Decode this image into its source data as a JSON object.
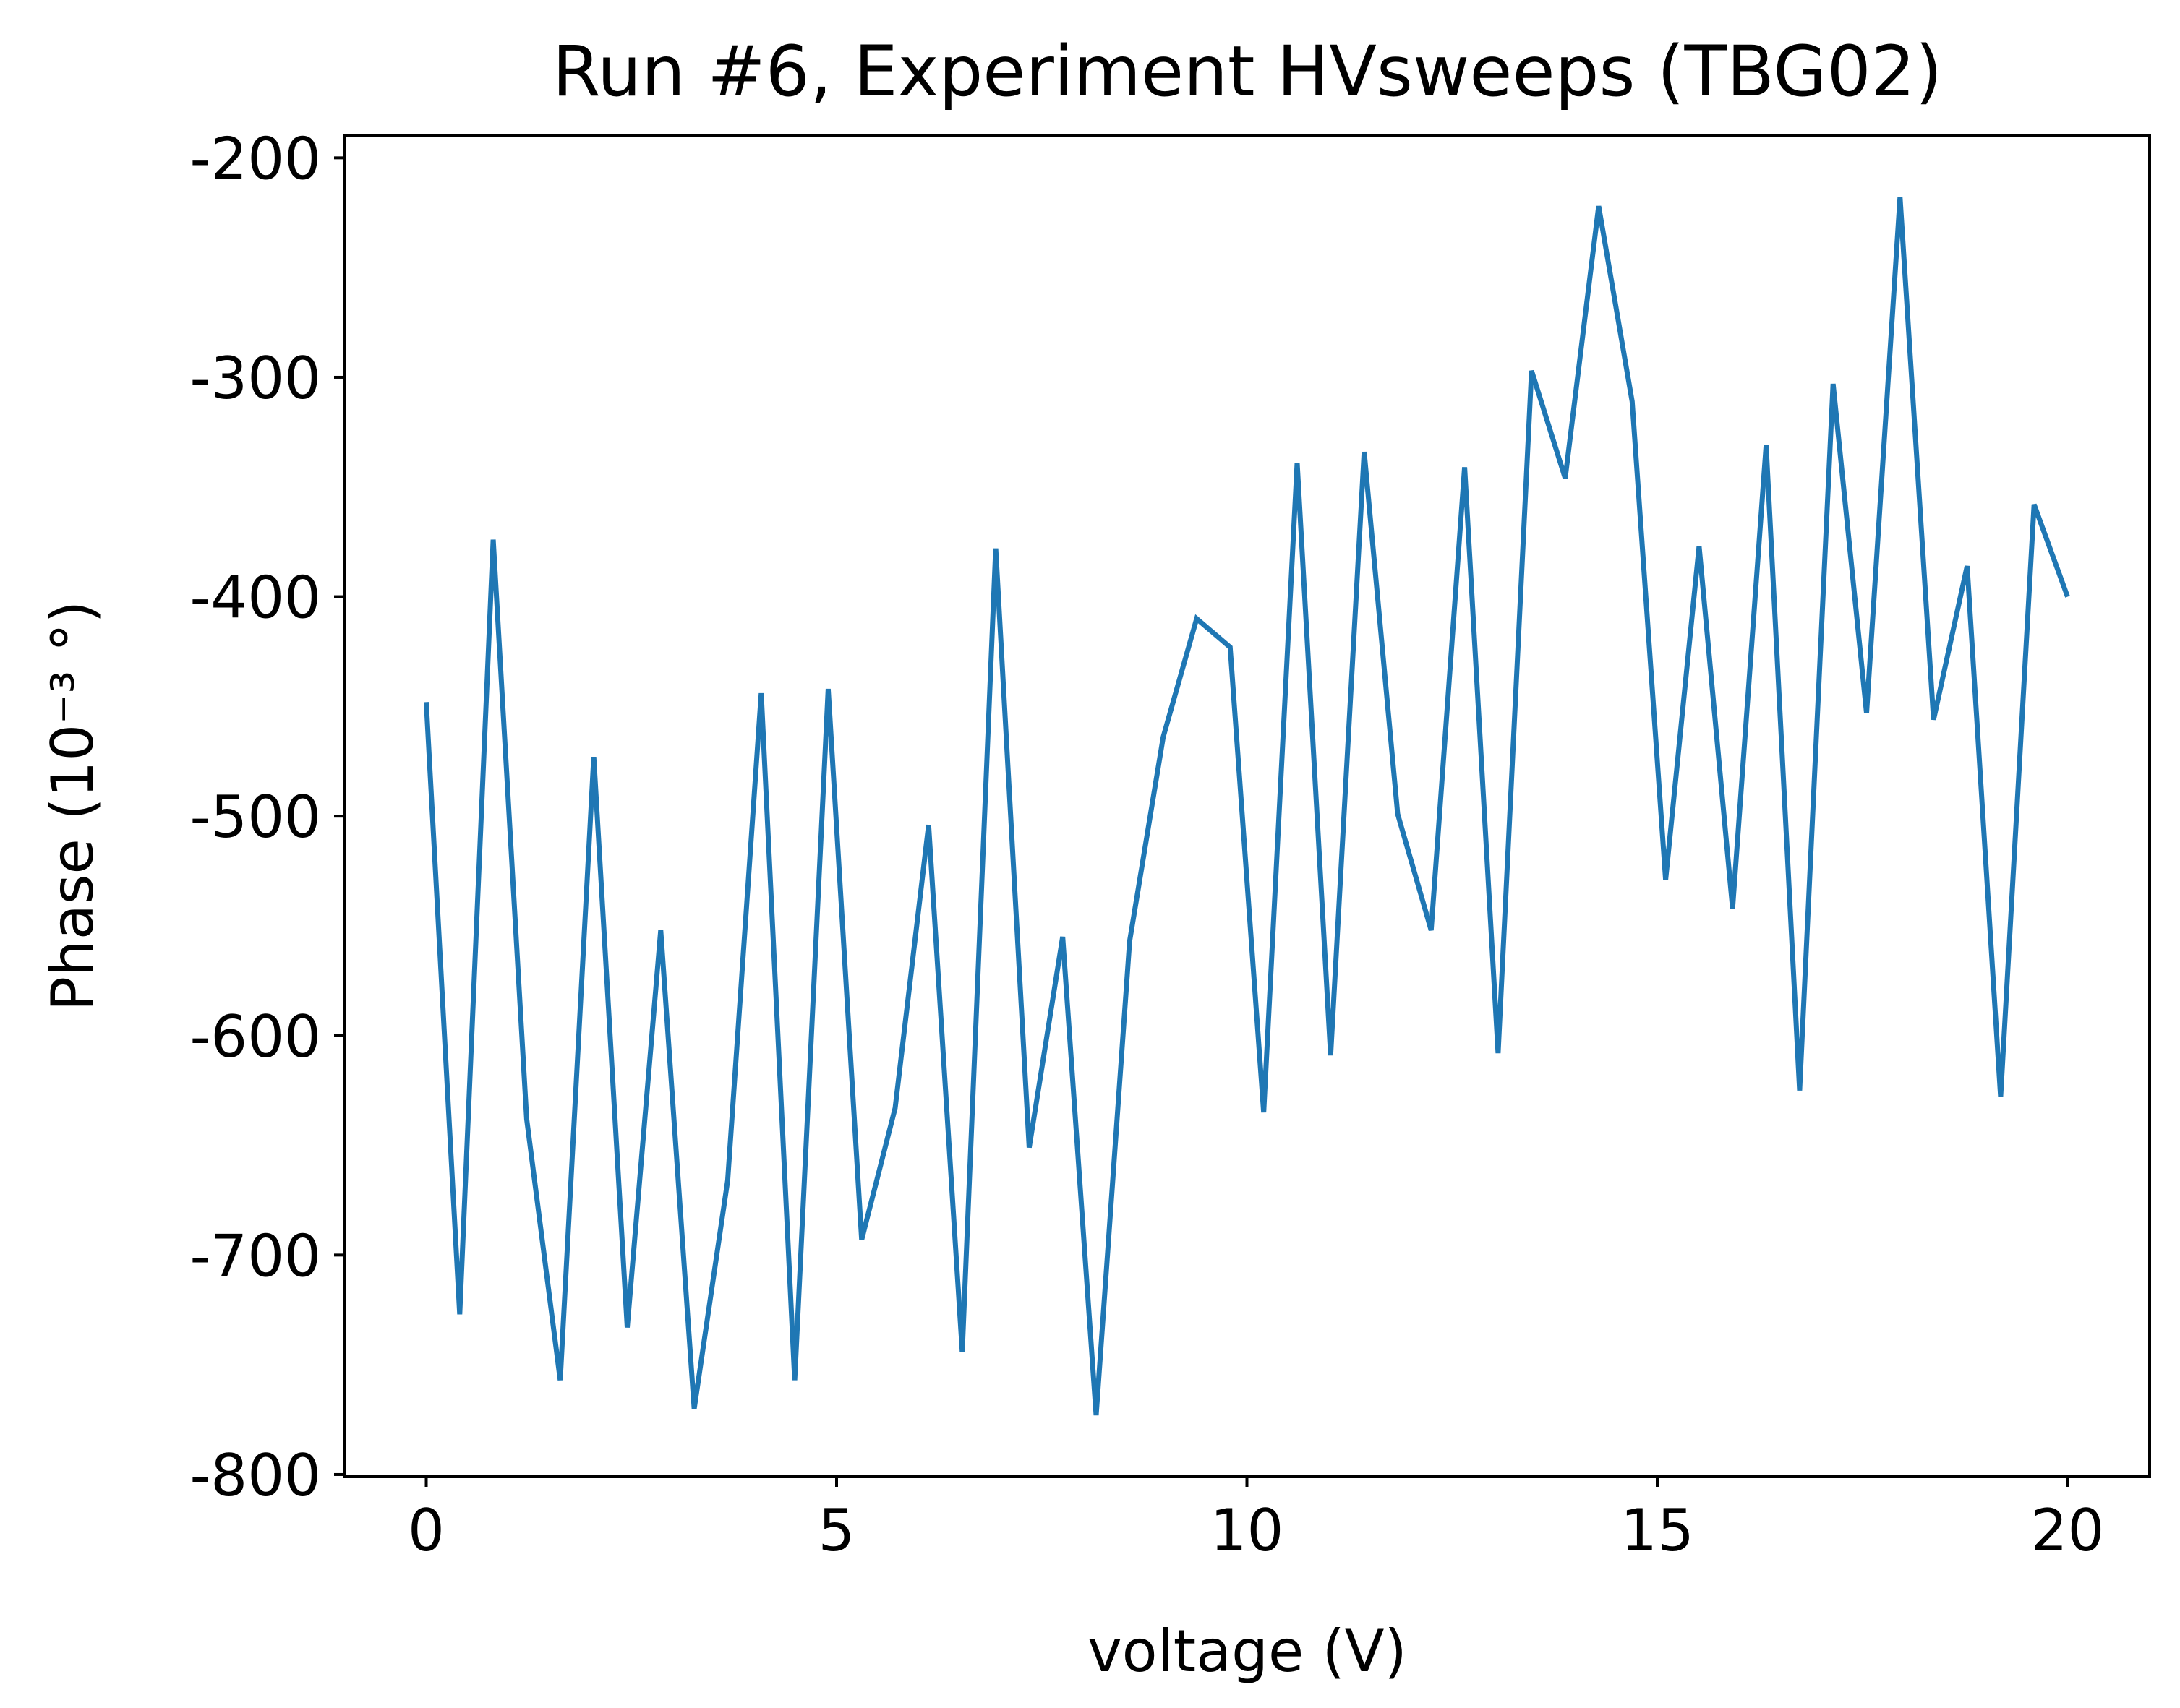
{
  "chart_data": {
    "type": "line",
    "title": "Run #6, Experiment HVsweeps (TBG02)",
    "xlabel": "voltage (V)",
    "ylabel": "Phase (10⁻³ °)",
    "xlim": [
      -1.0,
      21.0
    ],
    "ylim": [
      -801,
      -190
    ],
    "xticks": [
      0,
      5,
      10,
      15,
      20
    ],
    "xtick_labels": [
      "0",
      "5",
      "10",
      "15",
      "20"
    ],
    "yticks": [
      -800,
      -700,
      -600,
      -500,
      -400,
      -300,
      -200
    ],
    "ytick_labels": [
      "-800",
      "-700",
      "-600",
      "-500",
      "-400",
      "-300",
      "-200"
    ],
    "grid": false,
    "legend": "none",
    "series": [
      {
        "color": "#1f77b4",
        "x": [
          0.0,
          0.408,
          0.816,
          1.224,
          1.633,
          2.041,
          2.449,
          2.857,
          3.265,
          3.673,
          4.082,
          4.49,
          4.898,
          5.306,
          5.714,
          6.122,
          6.531,
          6.939,
          7.347,
          7.755,
          8.163,
          8.571,
          8.98,
          9.388,
          9.796,
          10.204,
          10.612,
          11.02,
          11.429,
          11.837,
          12.245,
          12.653,
          13.061,
          13.469,
          13.878,
          14.286,
          14.694,
          15.102,
          15.51,
          15.918,
          16.327,
          16.735,
          17.143,
          17.551,
          17.959,
          18.367,
          18.776,
          19.184,
          19.592,
          20.0
        ],
        "y": [
          -448,
          -727,
          -374,
          -638,
          -757,
          -473,
          -733,
          -552,
          -770,
          -666,
          -444,
          -757,
          -442,
          -693,
          -633,
          -504,
          -744,
          -378,
          -651,
          -555,
          -773,
          -557,
          -464,
          -410,
          -423,
          -635,
          -339,
          -609,
          -334,
          -499,
          -552,
          -341,
          -608,
          -297,
          -346,
          -222,
          -311,
          -529,
          -377,
          -542,
          -331,
          -625,
          -303,
          -453,
          -218,
          -456,
          -386,
          -628,
          -358,
          -400
        ]
      }
    ]
  }
}
